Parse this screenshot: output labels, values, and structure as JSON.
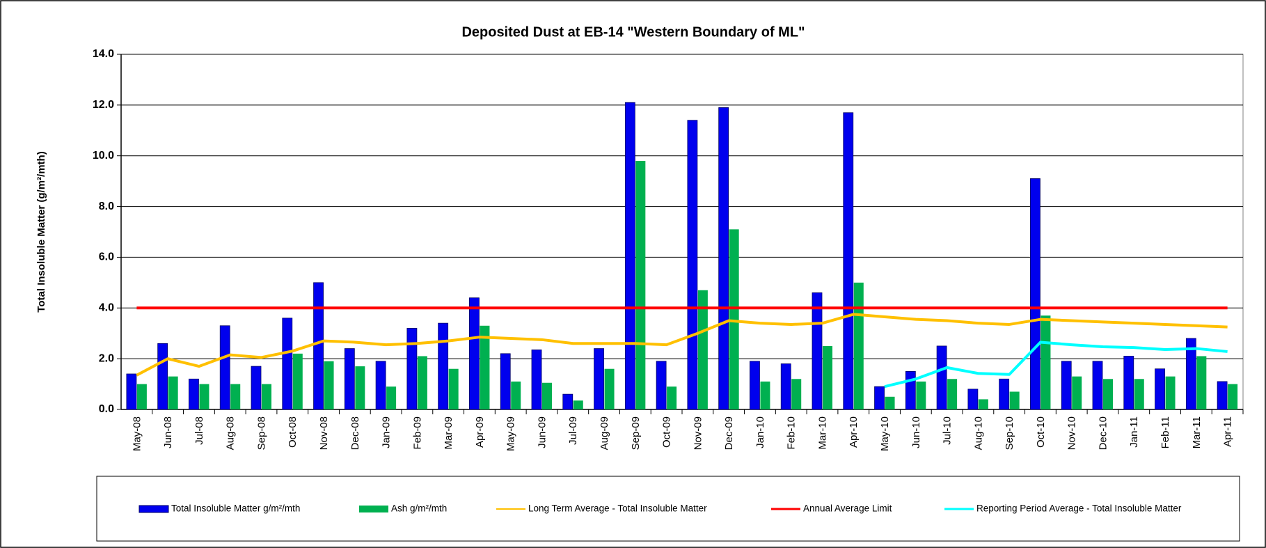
{
  "chart_data": {
    "type": "bar",
    "title": "Deposited Dust at EB-14 \"Western Boundary of ML\"",
    "y_label": "Total Insoluble Matter  (g/m²/mth)",
    "categories": [
      "May-08",
      "Jun-08",
      "Jul-08",
      "Aug-08",
      "Sep-08",
      "Oct-08",
      "Nov-08",
      "Dec-08",
      "Jan-09",
      "Feb-09",
      "Mar-09",
      "Apr-09",
      "May-09",
      "Jun-09",
      "Jul-09",
      "Aug-09",
      "Sep-09",
      "Oct-09",
      "Nov-09",
      "Dec-09",
      "Jan-10",
      "Feb-10",
      "Mar-10",
      "Apr-10",
      "May-10",
      "Jun-10",
      "Jul-10",
      "Aug-10",
      "Sep-10",
      "Oct-10",
      "Nov-10",
      "Dec-10",
      "Jan-11",
      "Feb-11",
      "Mar-11",
      "Apr-11"
    ],
    "series": [
      {
        "name": "Total Insoluble Matter  g/m²/mth",
        "type": "bar",
        "color": "#0000ee",
        "values": [
          1.4,
          2.6,
          1.2,
          3.3,
          1.7,
          3.6,
          5.0,
          2.4,
          1.9,
          3.2,
          3.4,
          4.4,
          2.2,
          2.35,
          0.6,
          2.4,
          12.1,
          1.9,
          11.4,
          11.9,
          1.9,
          1.8,
          4.6,
          11.7,
          0.9,
          1.5,
          2.5,
          0.8,
          1.2,
          9.1,
          1.9,
          1.9,
          2.1,
          1.6,
          2.8,
          1.1
        ]
      },
      {
        "name": "Ash  g/m²/mth",
        "type": "bar",
        "color": "#00b050",
        "values": [
          1.0,
          1.3,
          1.0,
          1.0,
          1.0,
          2.2,
          1.9,
          1.7,
          0.9,
          2.1,
          1.6,
          3.3,
          1.1,
          1.05,
          0.35,
          1.6,
          9.8,
          0.9,
          4.7,
          7.1,
          1.1,
          1.2,
          2.5,
          5.0,
          0.5,
          1.1,
          1.2,
          0.4,
          0.7,
          3.7,
          1.3,
          1.2,
          1.2,
          1.3,
          2.1,
          1.0
        ]
      },
      {
        "name": "Long Term Average - Total Insoluble Matter",
        "type": "line",
        "color": "#ffc000",
        "values": [
          1.35,
          2.0,
          1.7,
          2.15,
          2.05,
          2.3,
          2.7,
          2.65,
          2.55,
          2.6,
          2.7,
          2.85,
          2.8,
          2.75,
          2.6,
          2.6,
          2.6,
          2.55,
          3.0,
          3.5,
          3.4,
          3.35,
          3.4,
          3.75,
          3.65,
          3.55,
          3.5,
          3.4,
          3.35,
          3.55,
          3.5,
          3.45,
          3.4,
          3.35,
          3.3,
          3.25
        ]
      },
      {
        "name": "Annual Average Limit",
        "type": "line",
        "color": "#ff0000",
        "values": [
          4,
          4,
          4,
          4,
          4,
          4,
          4,
          4,
          4,
          4,
          4,
          4,
          4,
          4,
          4,
          4,
          4,
          4,
          4,
          4,
          4,
          4,
          4,
          4,
          4,
          4,
          4,
          4,
          4,
          4,
          4,
          4,
          4,
          4,
          4,
          4
        ]
      },
      {
        "name": "Reporting Period Average - Total Insoluble Matter",
        "type": "line",
        "color": "#00ffff",
        "values": [
          null,
          null,
          null,
          null,
          null,
          null,
          null,
          null,
          null,
          null,
          null,
          null,
          null,
          null,
          null,
          null,
          null,
          null,
          null,
          null,
          null,
          null,
          null,
          null,
          0.9,
          1.2,
          1.65,
          1.42,
          1.38,
          2.65,
          2.55,
          2.47,
          2.44,
          2.36,
          2.4,
          2.28
        ]
      }
    ],
    "ylim": [
      0,
      14
    ],
    "yticks": [
      {
        "value": 0,
        "label": "0.0"
      },
      {
        "value": 2,
        "label": "2.0"
      },
      {
        "value": 4,
        "label": "4.0"
      },
      {
        "value": 6,
        "label": "6.0"
      },
      {
        "value": 8,
        "label": "8.0"
      },
      {
        "value": 10,
        "label": "10.0"
      },
      {
        "value": 12,
        "label": "12.0"
      },
      {
        "value": 14,
        "label": "14.0"
      }
    ],
    "grid": true,
    "legend": "bottom"
  }
}
